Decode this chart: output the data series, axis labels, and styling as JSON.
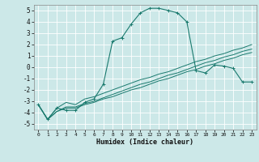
{
  "title": "",
  "xlabel": "Humidex (Indice chaleur)",
  "bg_color": "#cce8e8",
  "grid_color": "#ffffff",
  "line_color": "#1a7a6e",
  "xlim": [
    -0.5,
    23.5
  ],
  "ylim": [
    -5.5,
    5.5
  ],
  "xticks": [
    0,
    1,
    2,
    3,
    4,
    5,
    6,
    7,
    8,
    9,
    10,
    11,
    12,
    13,
    14,
    15,
    16,
    17,
    18,
    19,
    20,
    21,
    22,
    23
  ],
  "yticks": [
    -5,
    -4,
    -3,
    -2,
    -1,
    0,
    1,
    2,
    3,
    4,
    5
  ],
  "curve1_x": [
    0,
    1,
    2,
    3,
    4,
    5,
    6,
    7,
    8,
    9,
    10,
    11,
    12,
    13,
    14,
    15,
    16,
    17,
    18,
    19,
    20,
    21,
    22,
    23
  ],
  "curve1_y": [
    -3.3,
    -4.6,
    -3.6,
    -3.8,
    -3.8,
    -3.1,
    -2.8,
    -1.5,
    2.3,
    2.6,
    3.8,
    4.8,
    5.2,
    5.2,
    5.0,
    4.8,
    4.0,
    -0.3,
    -0.5,
    0.2,
    0.1,
    -0.1,
    -1.3,
    -1.3
  ],
  "curve2_x": [
    0,
    1,
    2,
    3,
    4,
    5,
    6,
    7,
    8,
    9,
    10,
    11,
    12,
    13,
    14,
    15,
    16,
    17,
    18,
    19,
    20,
    21,
    22,
    23
  ],
  "curve2_y": [
    -3.3,
    -4.6,
    -3.6,
    -3.1,
    -3.3,
    -2.8,
    -2.6,
    -2.3,
    -2.0,
    -1.7,
    -1.4,
    -1.1,
    -0.9,
    -0.6,
    -0.4,
    -0.1,
    0.2,
    0.5,
    0.7,
    1.0,
    1.2,
    1.5,
    1.7,
    2.0
  ],
  "curve3_x": [
    0,
    1,
    2,
    3,
    4,
    5,
    6,
    7,
    8,
    9,
    10,
    11,
    12,
    13,
    14,
    15,
    16,
    17,
    18,
    19,
    20,
    21,
    22,
    23
  ],
  "curve3_y": [
    -3.3,
    -4.6,
    -3.9,
    -3.5,
    -3.5,
    -3.2,
    -3.0,
    -2.7,
    -2.4,
    -2.1,
    -1.8,
    -1.5,
    -1.3,
    -1.0,
    -0.7,
    -0.5,
    -0.2,
    0.1,
    0.4,
    0.6,
    0.9,
    1.1,
    1.4,
    1.6
  ],
  "curve4_x": [
    0,
    1,
    2,
    3,
    4,
    5,
    6,
    7,
    8,
    9,
    10,
    11,
    12,
    13,
    14,
    15,
    16,
    17,
    18,
    19,
    20,
    21,
    22,
    23
  ],
  "curve4_y": [
    -3.3,
    -4.6,
    -3.9,
    -3.6,
    -3.6,
    -3.3,
    -3.1,
    -2.8,
    -2.6,
    -2.3,
    -2.0,
    -1.8,
    -1.5,
    -1.2,
    -1.0,
    -0.7,
    -0.4,
    -0.2,
    0.1,
    0.3,
    0.6,
    0.8,
    1.1,
    1.3
  ]
}
